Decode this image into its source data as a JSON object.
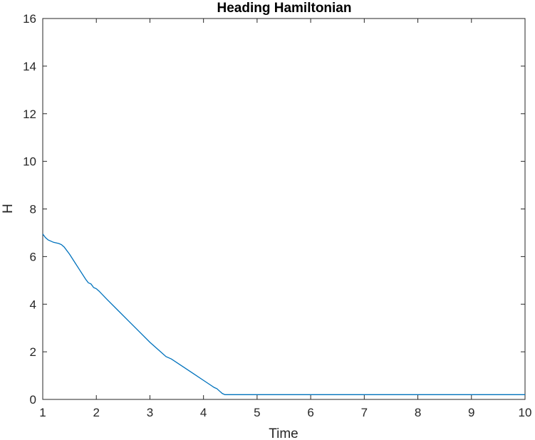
{
  "chart_data": {
    "type": "line",
    "title": "Heading Hamiltonian",
    "xlabel": "Time",
    "ylabel": "H",
    "xlim": [
      1,
      10
    ],
    "ylim": [
      0,
      16
    ],
    "xticks": [
      1,
      2,
      3,
      4,
      5,
      6,
      7,
      8,
      9,
      10
    ],
    "yticks": [
      0,
      2,
      4,
      6,
      8,
      10,
      12,
      14,
      16
    ],
    "grid": false,
    "line_color": "#0072BD",
    "series": [
      {
        "x": [
          1.0,
          1.05,
          1.1,
          1.2,
          1.3,
          1.35,
          1.4,
          1.5,
          1.6,
          1.7,
          1.8,
          1.85,
          1.9,
          1.95,
          2.0,
          2.05,
          2.2,
          2.4,
          2.6,
          2.8,
          3.0,
          3.2,
          3.3,
          3.4,
          3.6,
          3.8,
          4.0,
          4.1,
          4.2,
          4.25,
          4.3,
          4.35,
          4.4,
          5.0,
          6.0,
          7.0,
          8.0,
          9.0,
          10.0
        ],
        "y": [
          6.95,
          6.8,
          6.7,
          6.6,
          6.55,
          6.5,
          6.4,
          6.1,
          5.75,
          5.4,
          5.05,
          4.9,
          4.85,
          4.7,
          4.65,
          4.55,
          4.2,
          3.75,
          3.3,
          2.85,
          2.4,
          2.0,
          1.8,
          1.7,
          1.4,
          1.1,
          0.8,
          0.65,
          0.5,
          0.45,
          0.35,
          0.25,
          0.2,
          0.2,
          0.2,
          0.2,
          0.2,
          0.2,
          0.2
        ]
      }
    ]
  }
}
